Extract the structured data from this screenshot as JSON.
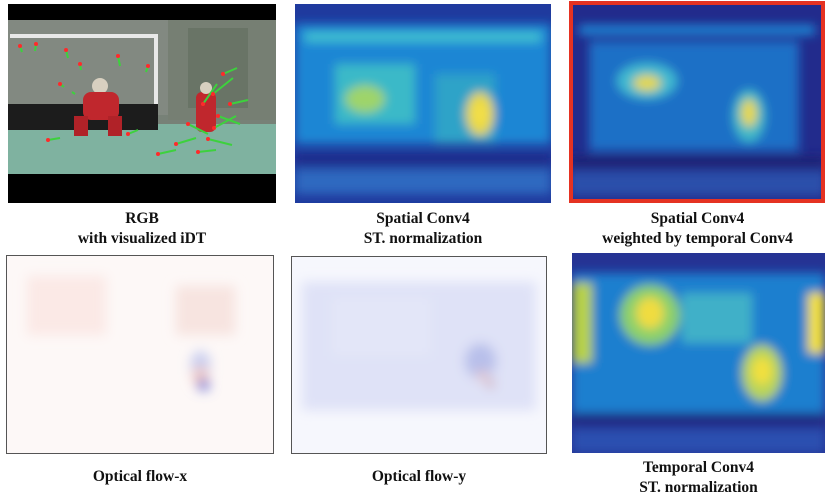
{
  "figure": {
    "panels": [
      {
        "id": "rgb",
        "caption_line1": "RGB",
        "caption_line2": "with visualized iDT"
      },
      {
        "id": "sc4",
        "caption_line1": "Spatial Conv4",
        "caption_line2": "ST. normalization"
      },
      {
        "id": "wt",
        "caption_line1": "Spatial Conv4",
        "caption_line2": "weighted by temporal Conv4",
        "highlighted": true
      },
      {
        "id": "fx",
        "caption_line1": "Optical flow-x"
      },
      {
        "id": "fy",
        "caption_line1": "Optical flow-y"
      },
      {
        "id": "tc4",
        "caption_line1": "Temporal Conv4",
        "caption_line2": "ST. normalization"
      }
    ],
    "colors": {
      "heatmap_low": "#2a2f8f",
      "heatmap_mid": "#1e90d0",
      "heatmap_high": "#f2e13a",
      "highlight_border": "#e53222",
      "field_green": "#7fb2a0",
      "keeper_red": "#c0272d"
    }
  }
}
